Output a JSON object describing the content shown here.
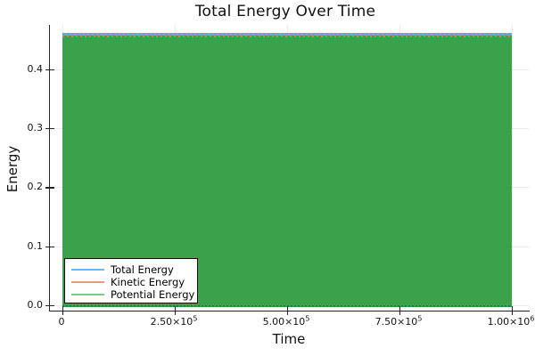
{
  "chart_data": {
    "type": "line",
    "title": "Total Energy Over Time",
    "xlabel": "Time",
    "ylabel": "Energy",
    "xlim": [
      0,
      1000000
    ],
    "ylim": [
      0,
      0.475
    ],
    "grid": true,
    "legend_position": "bottom-left",
    "xaxis": {
      "ticks": [
        {
          "value": 0,
          "m": "0",
          "e": ""
        },
        {
          "value": 250000,
          "m": "2.50×10",
          "e": "5"
        },
        {
          "value": 500000,
          "m": "5.00×10",
          "e": "5"
        },
        {
          "value": 750000,
          "m": "7.50×10",
          "e": "5"
        },
        {
          "value": 1000000,
          "m": "1.00×10",
          "e": "6"
        }
      ]
    },
    "yaxis": {
      "ticks": [
        {
          "value": 0.0,
          "label": "0.0"
        },
        {
          "value": 0.1,
          "label": "0.1"
        },
        {
          "value": 0.2,
          "label": "0.2"
        },
        {
          "value": 0.3,
          "label": "0.3"
        },
        {
          "value": 0.4,
          "label": "0.4"
        }
      ]
    },
    "series": [
      {
        "name": "Total Energy",
        "color": "#6db9ec",
        "shape": "constant horizontal line",
        "value": 0.457,
        "x_range": [
          0,
          1000000
        ]
      },
      {
        "name": "Kinetic Energy",
        "color": "#eb9a7f",
        "shape": "high-frequency oscillation, hidden under potential fill",
        "min": 0,
        "max": 0.457
      },
      {
        "name": "Potential Energy",
        "color": "#3ba24b",
        "shape": "high-frequency oscillation rendering as solid green fill",
        "min": 0,
        "max": 0.457
      }
    ]
  },
  "legend": {
    "items": [
      {
        "label": "Total Energy",
        "color": "#6db9ec"
      },
      {
        "label": "Kinetic Energy",
        "color": "#eb9a7f"
      },
      {
        "label": "Potential Energy",
        "color": "#7fc687"
      }
    ]
  },
  "colors": {
    "fill_green": "#3ba24b",
    "band_blue": "#58a7e2",
    "band_blue_gap": "#8fa3ad",
    "band_salmon": "#d9795c",
    "edge_green": "#1f7f38",
    "spine": "#262626",
    "grid": "rgba(0,0,0,0.08)",
    "tick_text": "#141414"
  }
}
